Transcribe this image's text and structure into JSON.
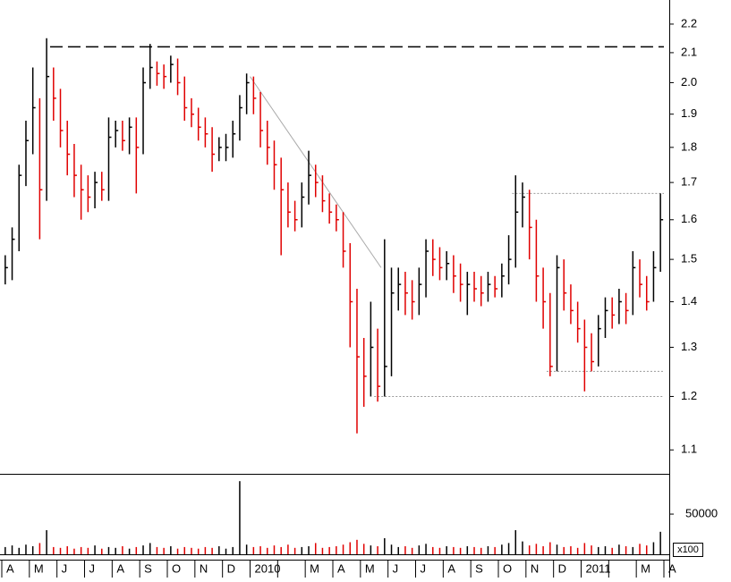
{
  "chart_data": {
    "type": "ohlc",
    "log_scale": true,
    "up_color": "#000000",
    "down_color": "#e00000",
    "categories": [
      "A",
      "M",
      "J",
      "J",
      "A",
      "S",
      "O",
      "N",
      "D",
      "2010",
      null,
      "M",
      "A",
      "M",
      "J",
      "J",
      "A",
      "S",
      "O",
      "N",
      "D",
      "2011",
      null,
      "M",
      "A"
    ],
    "bars_per_category": 4,
    "high": [
      1.51,
      1.58,
      1.75,
      1.88,
      2.05,
      1.95,
      2.15,
      2.05,
      1.98,
      1.88,
      1.81,
      1.75,
      1.72,
      1.73,
      1.73,
      1.89,
      1.88,
      1.88,
      1.89,
      1.89,
      2.05,
      2.13,
      2.07,
      2.06,
      2.09,
      2.08,
      2.02,
      1.95,
      1.92,
      1.89,
      1.86,
      1.83,
      1.84,
      1.88,
      1.96,
      2.03,
      2.02,
      1.97,
      1.88,
      1.82,
      1.77,
      1.7,
      1.65,
      1.7,
      1.79,
      1.75,
      1.72,
      1.67,
      1.64,
      1.62,
      1.54,
      1.43,
      1.32,
      1.4,
      1.34,
      1.55,
      1.48,
      1.48,
      1.47,
      1.45,
      1.48,
      1.55,
      1.55,
      1.53,
      1.52,
      1.51,
      1.49,
      1.47,
      1.47,
      1.46,
      1.47,
      1.46,
      1.49,
      1.56,
      1.72,
      1.7,
      1.68,
      1.6,
      1.48,
      1.42,
      1.51,
      1.5,
      1.44,
      1.4,
      1.36,
      1.33,
      1.37,
      1.41,
      1.41,
      1.43,
      1.42,
      1.52,
      1.5,
      1.46,
      1.52,
      1.67
    ],
    "low": [
      1.44,
      1.45,
      1.52,
      1.69,
      1.78,
      1.55,
      1.65,
      1.88,
      1.8,
      1.72,
      1.66,
      1.6,
      1.62,
      1.63,
      1.65,
      1.65,
      1.8,
      1.79,
      1.78,
      1.67,
      1.78,
      1.98,
      1.99,
      1.98,
      2.0,
      1.96,
      1.88,
      1.86,
      1.82,
      1.8,
      1.73,
      1.76,
      1.76,
      1.77,
      1.82,
      1.9,
      1.9,
      1.8,
      1.75,
      1.68,
      1.51,
      1.58,
      1.57,
      1.58,
      1.64,
      1.66,
      1.62,
      1.59,
      1.57,
      1.48,
      1.3,
      1.13,
      1.18,
      1.2,
      1.19,
      1.2,
      1.24,
      1.38,
      1.37,
      1.36,
      1.37,
      1.41,
      1.46,
      1.45,
      1.45,
      1.42,
      1.4,
      1.37,
      1.4,
      1.39,
      1.4,
      1.41,
      1.41,
      1.44,
      1.48,
      1.58,
      1.5,
      1.4,
      1.34,
      1.24,
      1.25,
      1.38,
      1.35,
      1.31,
      1.21,
      1.25,
      1.26,
      1.32,
      1.34,
      1.35,
      1.35,
      1.37,
      1.41,
      1.38,
      1.4,
      1.47
    ],
    "close": [
      1.48,
      1.55,
      1.72,
      1.82,
      1.92,
      1.68,
      2.02,
      1.95,
      1.85,
      1.78,
      1.72,
      1.68,
      1.66,
      1.7,
      1.68,
      1.83,
      1.85,
      1.82,
      1.86,
      1.8,
      2.0,
      2.05,
      2.03,
      2.02,
      2.06,
      2.0,
      1.92,
      1.9,
      1.86,
      1.84,
      1.78,
      1.8,
      1.8,
      1.84,
      1.92,
      2.0,
      1.95,
      1.85,
      1.8,
      1.75,
      1.68,
      1.62,
      1.6,
      1.66,
      1.72,
      1.7,
      1.65,
      1.62,
      1.6,
      1.52,
      1.4,
      1.28,
      1.24,
      1.3,
      1.22,
      1.26,
      1.42,
      1.44,
      1.42,
      1.4,
      1.44,
      1.52,
      1.5,
      1.48,
      1.49,
      1.46,
      1.44,
      1.44,
      1.43,
      1.42,
      1.44,
      1.43,
      1.46,
      1.5,
      1.62,
      1.66,
      1.58,
      1.46,
      1.4,
      1.26,
      1.48,
      1.42,
      1.38,
      1.34,
      1.3,
      1.27,
      1.34,
      1.38,
      1.37,
      1.4,
      1.38,
      1.48,
      1.44,
      1.4,
      1.48,
      1.6
    ],
    "volume": [
      9000,
      11000,
      8000,
      12000,
      10000,
      14000,
      30000,
      9000,
      8000,
      10000,
      7000,
      9000,
      8000,
      11000,
      7000,
      9000,
      8000,
      10000,
      7000,
      9000,
      11000,
      14000,
      9000,
      8000,
      10000,
      7000,
      9000,
      8000,
      7000,
      9000,
      8000,
      10000,
      7000,
      9000,
      91000,
      12000,
      9000,
      10000,
      8000,
      11000,
      9000,
      12000,
      8000,
      9000,
      10000,
      14000,
      8000,
      9000,
      10000,
      12000,
      15000,
      18000,
      13000,
      11000,
      10000,
      20000,
      12000,
      9000,
      10000,
      8000,
      11000,
      13000,
      9000,
      8000,
      10000,
      9000,
      8000,
      10000,
      9000,
      8000,
      10000,
      9000,
      12000,
      14000,
      30000,
      16000,
      11000,
      13000,
      10000,
      15000,
      12000,
      9000,
      10000,
      8000,
      14000,
      11000,
      9000,
      10000,
      8000,
      12000,
      10000,
      9000,
      13000,
      11000,
      15000,
      28000
    ],
    "ylim": [
      1.058,
      2.288
    ],
    "yticks": [
      1.1,
      1.2,
      1.3,
      1.4,
      1.5,
      1.6,
      1.7,
      1.8,
      1.9,
      {
        "value": 2.0,
        "label": "2.0"
      },
      2.1,
      2.2
    ],
    "vlim": [
      0,
      99000
    ],
    "vticks": [
      50000
    ],
    "volume_unit": "x100",
    "annotations": [
      {
        "style": "dashed",
        "color": "#000000",
        "from": [
          7,
          2.12
        ],
        "to": [
          96,
          2.12
        ]
      },
      {
        "style": "solid",
        "color": "#aaaaaa",
        "from": [
          36,
          2.02
        ],
        "to": [
          55,
          1.48
        ]
      },
      {
        "style": "dotted",
        "color": "#999999",
        "from": [
          74,
          1.67
        ],
        "to": [
          96,
          1.67
        ]
      },
      {
        "style": "dotted",
        "color": "#999999",
        "from": [
          79,
          1.25
        ],
        "to": [
          96,
          1.25
        ]
      },
      {
        "style": "dotted",
        "color": "#999999",
        "from": [
          54,
          1.2
        ],
        "to": [
          96,
          1.2
        ]
      }
    ]
  }
}
